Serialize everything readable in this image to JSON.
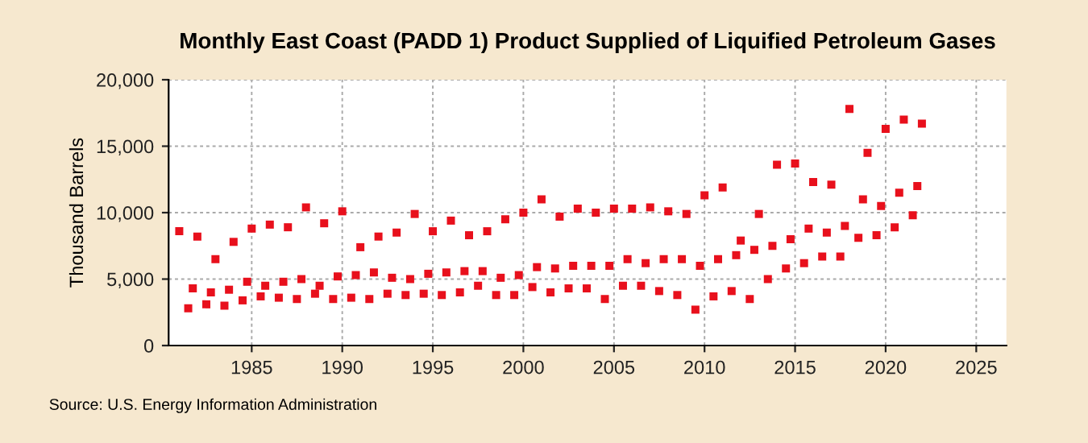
{
  "chart_data": {
    "type": "scatter",
    "title": "Monthly East Coast (PADD 1) Product Supplied of Liquified Petroleum Gases",
    "ylabel": "Thousand Barrels",
    "annotations": [
      "Source: U.S. Energy Information Administration"
    ],
    "x": [
      "1981-01",
      "1981-07",
      "1981-10",
      "1982-01",
      "1982-07",
      "1982-10",
      "1983-01",
      "1983-07",
      "1983-10",
      "1984-01",
      "1984-07",
      "1984-10",
      "1985-01",
      "1985-07",
      "1985-10",
      "1986-01",
      "1986-07",
      "1986-10",
      "1987-01",
      "1987-07",
      "1987-10",
      "1988-01",
      "1988-07",
      "1988-10",
      "1989-01",
      "1989-07",
      "1989-10",
      "1990-01",
      "1990-07",
      "1990-10",
      "1991-01",
      "1991-07",
      "1991-10",
      "1992-01",
      "1992-07",
      "1992-10",
      "1993-01",
      "1993-07",
      "1993-10",
      "1994-01",
      "1994-07",
      "1994-10",
      "1995-01",
      "1995-07",
      "1995-10",
      "1996-01",
      "1996-07",
      "1996-10",
      "1997-01",
      "1997-07",
      "1997-10",
      "1998-01",
      "1998-07",
      "1998-10",
      "1999-01",
      "1999-07",
      "1999-10",
      "2000-01",
      "2000-07",
      "2000-10",
      "2001-01",
      "2001-07",
      "2001-10",
      "2002-01",
      "2002-07",
      "2002-10",
      "2003-01",
      "2003-07",
      "2003-10",
      "2004-01",
      "2004-07",
      "2004-10",
      "2005-01",
      "2005-07",
      "2005-10",
      "2006-01",
      "2006-07",
      "2006-10",
      "2007-01",
      "2007-07",
      "2007-10",
      "2008-01",
      "2008-07",
      "2008-10",
      "2009-01",
      "2009-07",
      "2009-10",
      "2010-01",
      "2010-07",
      "2010-10",
      "2011-01",
      "2011-07",
      "2011-10",
      "2012-01",
      "2012-07",
      "2012-10",
      "2013-01",
      "2013-07",
      "2013-10",
      "2014-01",
      "2014-07",
      "2014-10",
      "2015-01",
      "2015-07",
      "2015-10",
      "2016-01",
      "2016-07",
      "2016-10",
      "2017-01",
      "2017-07",
      "2017-10",
      "2018-01",
      "2018-07",
      "2018-10",
      "2019-01",
      "2019-07",
      "2019-10",
      "2020-01",
      "2020-07",
      "2020-10",
      "2021-01",
      "2021-07",
      "2021-10",
      "2022-01"
    ],
    "series": [
      {
        "color": "#e8101c",
        "values": [
          8600,
          2800,
          4300,
          8200,
          3100,
          4000,
          6500,
          3000,
          4200,
          7800,
          3400,
          4800,
          8800,
          3700,
          4500,
          9100,
          3600,
          4800,
          8900,
          3500,
          5000,
          10400,
          3900,
          4500,
          9200,
          3500,
          5200,
          10100,
          3600,
          5300,
          7400,
          3500,
          5500,
          8200,
          3900,
          5100,
          8500,
          3800,
          5000,
          9900,
          3900,
          5400,
          8600,
          3800,
          5500,
          9400,
          4000,
          5600,
          8300,
          4500,
          5600,
          8600,
          3800,
          5100,
          9500,
          3800,
          5300,
          10000,
          4400,
          5900,
          11000,
          4000,
          5800,
          9700,
          4300,
          6000,
          10300,
          4300,
          6000,
          10000,
          3500,
          6000,
          10300,
          4500,
          6500,
          10300,
          4500,
          6200,
          10400,
          4100,
          6500,
          10100,
          3800,
          6500,
          9900,
          2700,
          6000,
          11300,
          3700,
          6500,
          11900,
          4100,
          6800,
          7900,
          3500,
          7200,
          9900,
          5000,
          7500,
          13600,
          5800,
          8000,
          13700,
          6200,
          8800,
          12300,
          6700,
          8500,
          12100,
          6700,
          9000,
          17800,
          8100,
          11000,
          14500,
          8300,
          10500,
          16300,
          8900,
          11500,
          17000,
          9800,
          12000,
          16700
        ]
      }
    ],
    "marker": "square",
    "xlim": [
      "1980-06",
      "2026-09"
    ],
    "xticks": [
      {
        "value": "1985",
        "label": "1985"
      },
      {
        "value": "1990",
        "label": "1990"
      },
      {
        "value": "1995",
        "label": "1995"
      },
      {
        "value": "2000",
        "label": "2000"
      },
      {
        "value": "2005",
        "label": "2005"
      },
      {
        "value": "2010",
        "label": "2010"
      },
      {
        "value": "2015",
        "label": "2015"
      },
      {
        "value": "2020",
        "label": "2020"
      },
      {
        "value": "2025",
        "label": "2025"
      }
    ],
    "ylim": [
      0,
      20000
    ],
    "yticks": [
      {
        "value": 0,
        "label": "0"
      },
      {
        "value": 5000,
        "label": "5,000"
      },
      {
        "value": 10000,
        "label": "10,000"
      },
      {
        "value": 15000,
        "label": "15,000"
      },
      {
        "value": 20000,
        "label": "20,000"
      }
    ],
    "grid": true
  }
}
